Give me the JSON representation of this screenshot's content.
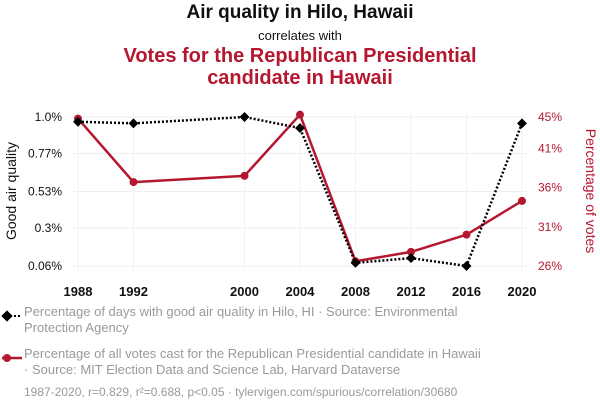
{
  "header": {
    "title": "Air quality in Hilo, Hawaii",
    "connector": "correlates with",
    "second_title_line1": "Votes for the Republican Presidential",
    "second_title_line2": "candidate in Hawaii"
  },
  "chart_data": {
    "type": "line",
    "x": [
      1988,
      1992,
      2000,
      2004,
      2008,
      2012,
      2016,
      2020
    ],
    "x_tick_labels": [
      "1988",
      "1992",
      "2000",
      "2004",
      "2008",
      "2012",
      "2016",
      "2020"
    ],
    "series": [
      {
        "name": "Percentage of days with good air quality in Hilo, HI",
        "axis": "left",
        "color": "#000000",
        "style": "dotted",
        "marker": "diamond",
        "values": [
          0.97,
          0.96,
          1.0,
          0.93,
          0.08,
          0.11,
          0.06,
          0.96
        ]
      },
      {
        "name": "Percentage of all votes cast for the Republican Presidential candidate in Hawaii",
        "axis": "right",
        "color": "#b5172f",
        "style": "solid",
        "marker": "circle",
        "values": [
          44.8,
          36.7,
          37.5,
          45.3,
          26.6,
          27.8,
          30.0,
          34.3
        ]
      }
    ],
    "left_axis": {
      "label": "Good air quality",
      "ylim": [
        0.06,
        1.0
      ],
      "ticks": [
        0.06,
        0.3,
        0.53,
        0.77,
        1.0
      ],
      "tick_labels": [
        "0.06%",
        "0.3%",
        "0.53%",
        "0.77%",
        "1.0%"
      ]
    },
    "right_axis": {
      "label": "Percentage of votes",
      "ylim": [
        26,
        45
      ],
      "ticks": [
        26,
        31,
        36,
        41,
        45
      ],
      "tick_labels": [
        "26%",
        "31%",
        "36%",
        "41%",
        "45%"
      ]
    },
    "grid": true
  },
  "legend": {
    "items": [
      {
        "line1": "Percentage of days with good air quality in Hilo, HI · Source: Environmental",
        "line2": "Protection Agency"
      },
      {
        "line1": "Percentage of all votes cast for the Republican Presidential candidate in Hawaii",
        "line2": "· Source: MIT Election Data and Science Lab, Harvard Dataverse"
      }
    ]
  },
  "footer": "1987-2020, r=0.829, r²=0.688, p<0.05 · tylervigen.com/spurious/correlation/30680"
}
